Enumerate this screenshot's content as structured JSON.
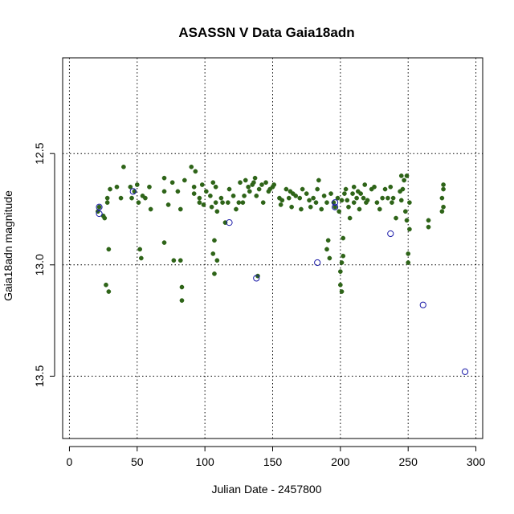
{
  "chart_data": {
    "type": "scatter",
    "title": "ASASSN V Data Gaia18adn",
    "xlabel": "Julian Date -  2457800",
    "ylabel": "Gaia18adn magnitude",
    "xlim": [
      -5,
      305
    ],
    "ylim": [
      13.78,
      12.07
    ],
    "y_reversed": true,
    "x_ticks": [
      0,
      50,
      100,
      150,
      200,
      250,
      300
    ],
    "y_ticks": [
      12.5,
      13.0,
      13.5
    ],
    "y_tick_labels": [
      "12.5",
      "13.0",
      "13.5"
    ],
    "x_grid": [
      0,
      50,
      100,
      150,
      200,
      250,
      300
    ],
    "y_grid": [
      12.5,
      13.0,
      13.5
    ],
    "grid": true,
    "colors": {
      "detection": "#2e6418",
      "upper_limit": "#1a1aa8"
    },
    "series": [
      {
        "marker": "filled-circle",
        "color": "#2e6418",
        "points": [
          [
            22,
            12.74
          ],
          [
            25,
            12.78
          ],
          [
            26,
            12.79
          ],
          [
            27,
            13.09
          ],
          [
            28,
            12.72
          ],
          [
            28,
            12.7
          ],
          [
            29,
            12.93
          ],
          [
            29,
            13.12
          ],
          [
            30,
            12.66
          ],
          [
            35,
            12.65
          ],
          [
            38,
            12.7
          ],
          [
            40,
            12.56
          ],
          [
            45,
            12.65
          ],
          [
            46,
            12.7
          ],
          [
            48,
            12.67
          ],
          [
            50,
            12.64
          ],
          [
            51,
            12.72
          ],
          [
            52,
            12.93
          ],
          [
            53,
            12.97
          ],
          [
            54,
            12.69
          ],
          [
            56,
            12.7
          ],
          [
            59,
            12.65
          ],
          [
            60,
            12.75
          ],
          [
            70,
            12.61
          ],
          [
            70,
            12.67
          ],
          [
            70,
            12.9
          ],
          [
            73,
            12.73
          ],
          [
            76,
            12.63
          ],
          [
            77,
            12.98
          ],
          [
            80,
            12.67
          ],
          [
            82,
            12.75
          ],
          [
            82,
            12.98
          ],
          [
            83,
            13.1
          ],
          [
            83,
            13.16
          ],
          [
            85,
            12.62
          ],
          [
            90,
            12.56
          ],
          [
            92,
            12.65
          ],
          [
            92,
            12.68
          ],
          [
            93,
            12.58
          ],
          [
            96,
            12.7
          ],
          [
            96,
            12.72
          ],
          [
            98,
            12.64
          ],
          [
            99,
            12.73
          ],
          [
            101,
            12.67
          ],
          [
            104,
            12.69
          ],
          [
            105,
            12.74
          ],
          [
            106,
            12.63
          ],
          [
            106,
            12.95
          ],
          [
            107,
            12.89
          ],
          [
            107,
            13.04
          ],
          [
            108,
            12.65
          ],
          [
            108,
            12.72
          ],
          [
            109,
            12.76
          ],
          [
            109,
            12.98
          ],
          [
            112,
            12.7
          ],
          [
            113,
            12.72
          ],
          [
            115,
            12.81
          ],
          [
            117,
            12.72
          ],
          [
            118,
            12.66
          ],
          [
            121,
            12.69
          ],
          [
            123,
            12.75
          ],
          [
            125,
            12.72
          ],
          [
            126,
            12.63
          ],
          [
            128,
            12.72
          ],
          [
            129,
            12.69
          ],
          [
            130,
            12.62
          ],
          [
            132,
            12.65
          ],
          [
            133,
            12.67
          ],
          [
            135,
            12.64
          ],
          [
            136,
            12.63
          ],
          [
            137,
            12.61
          ],
          [
            138,
            12.69
          ],
          [
            139,
            13.05
          ],
          [
            140,
            12.66
          ],
          [
            142,
            12.64
          ],
          [
            143,
            12.72
          ],
          [
            145,
            12.63
          ],
          [
            147,
            12.67
          ],
          [
            148,
            12.66
          ],
          [
            150,
            12.65
          ],
          [
            151,
            12.64
          ],
          [
            155,
            12.7
          ],
          [
            156,
            12.73
          ],
          [
            157,
            12.71
          ],
          [
            160,
            12.66
          ],
          [
            162,
            12.7
          ],
          [
            163,
            12.67
          ],
          [
            164,
            12.74
          ],
          [
            165,
            12.68
          ],
          [
            167,
            12.69
          ],
          [
            170,
            12.7
          ],
          [
            171,
            12.75
          ],
          [
            172,
            12.66
          ],
          [
            175,
            12.68
          ],
          [
            177,
            12.71
          ],
          [
            178,
            12.74
          ],
          [
            180,
            12.7
          ],
          [
            182,
            12.72
          ],
          [
            183,
            12.66
          ],
          [
            184,
            12.62
          ],
          [
            186,
            12.75
          ],
          [
            188,
            12.69
          ],
          [
            190,
            12.72
          ],
          [
            190,
            12.93
          ],
          [
            191,
            12.89
          ],
          [
            192,
            12.97
          ],
          [
            193,
            12.68
          ],
          [
            195,
            12.72
          ],
          [
            196,
            12.74
          ],
          [
            198,
            12.7
          ],
          [
            199,
            12.76
          ],
          [
            200,
            13.03
          ],
          [
            200,
            13.09
          ],
          [
            201,
            12.71
          ],
          [
            201,
            12.99
          ],
          [
            201,
            13.12
          ],
          [
            202,
            12.88
          ],
          [
            202,
            12.96
          ],
          [
            203,
            12.68
          ],
          [
            204,
            12.66
          ],
          [
            205,
            12.71
          ],
          [
            206,
            12.74
          ],
          [
            207,
            12.79
          ],
          [
            209,
            12.68
          ],
          [
            210,
            12.65
          ],
          [
            210,
            12.72
          ],
          [
            212,
            12.7
          ],
          [
            213,
            12.67
          ],
          [
            214,
            12.75
          ],
          [
            215,
            12.68
          ],
          [
            217,
            12.7
          ],
          [
            218,
            12.64
          ],
          [
            219,
            12.72
          ],
          [
            220,
            12.71
          ],
          [
            223,
            12.66
          ],
          [
            225,
            12.65
          ],
          [
            227,
            12.72
          ],
          [
            229,
            12.75
          ],
          [
            231,
            12.7
          ],
          [
            233,
            12.66
          ],
          [
            235,
            12.7
          ],
          [
            237,
            12.65
          ],
          [
            238,
            12.72
          ],
          [
            239,
            12.7
          ],
          [
            241,
            12.79
          ],
          [
            244,
            12.67
          ],
          [
            245,
            12.6
          ],
          [
            245,
            12.71
          ],
          [
            246,
            12.66
          ],
          [
            247,
            12.62
          ],
          [
            248,
            12.76
          ],
          [
            249,
            12.6
          ],
          [
            249,
            12.8
          ],
          [
            250,
            12.95
          ],
          [
            250,
            12.99
          ],
          [
            251,
            12.84
          ],
          [
            251,
            12.72
          ],
          [
            265,
            12.8
          ],
          [
            265,
            12.83
          ],
          [
            275,
            12.76
          ],
          [
            275,
            12.7
          ],
          [
            276,
            12.64
          ],
          [
            276,
            12.66
          ],
          [
            276,
            12.74
          ],
          [
            21,
            12.76
          ]
        ]
      },
      {
        "marker": "open-circle",
        "color": "#1a1aa8",
        "points": [
          [
            22,
            12.74
          ],
          [
            22,
            12.77
          ],
          [
            47,
            12.67
          ],
          [
            118,
            12.81
          ],
          [
            138,
            13.06
          ],
          [
            183,
            12.99
          ],
          [
            196,
            12.72
          ],
          [
            196,
            12.74
          ],
          [
            237,
            12.86
          ],
          [
            261,
            13.18
          ],
          [
            292,
            13.48
          ]
        ]
      }
    ]
  }
}
